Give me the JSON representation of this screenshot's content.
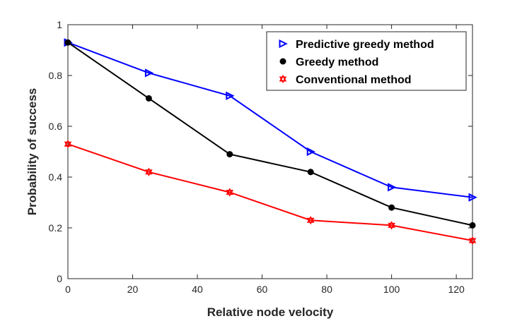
{
  "chart_data": {
    "type": "line",
    "title": "",
    "xlabel": "Relative node velocity",
    "ylabel": "Probability of success",
    "xlim": [
      0,
      125
    ],
    "ylim": [
      0,
      1
    ],
    "xticks": [
      0,
      20,
      40,
      60,
      80,
      100,
      120
    ],
    "yticks": [
      0,
      0.2,
      0.4,
      0.6,
      0.8,
      1
    ],
    "yticklabels": [
      "0",
      "0.2",
      "0.4",
      "0.6",
      "0.8",
      "1"
    ],
    "grid": false,
    "legend_position": "top-right",
    "x": [
      0,
      25,
      50,
      75,
      100,
      125
    ],
    "series": [
      {
        "name": "Predictive greedy method",
        "color": "#0000ff",
        "marker": "triangle-right",
        "values": [
          0.93,
          0.81,
          0.72,
          0.5,
          0.36,
          0.32
        ]
      },
      {
        "name": "Greedy method",
        "color": "#000000",
        "marker": "filled-circle",
        "values": [
          0.93,
          0.71,
          0.49,
          0.42,
          0.28,
          0.21
        ]
      },
      {
        "name": "Conventional method",
        "color": "#ff0000",
        "marker": "hexagram",
        "values": [
          0.53,
          0.42,
          0.34,
          0.23,
          0.21,
          0.15
        ]
      }
    ]
  }
}
